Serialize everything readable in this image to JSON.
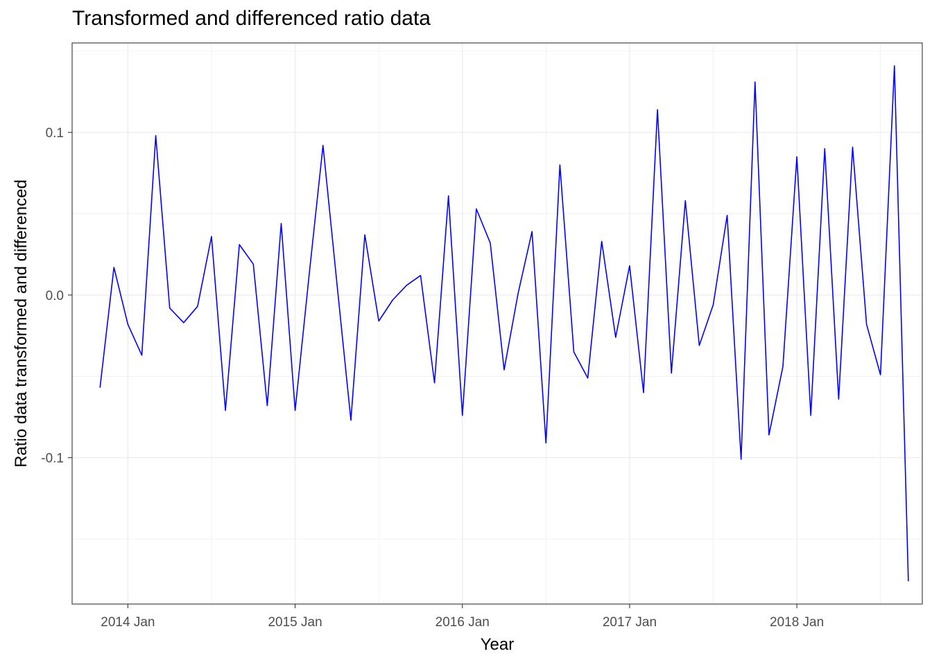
{
  "chart_data": {
    "type": "line",
    "title": "Transformed and differenced ratio data",
    "xlabel": "Year",
    "ylabel": "Ratio data transformed and differenced",
    "x_ticks": [
      "2014 Jan",
      "2015 Jan",
      "2016 Jan",
      "2017 Jan",
      "2018 Jan"
    ],
    "y_ticks": [
      "0.1",
      "0.0",
      "-0.1"
    ],
    "y_tick_values": [
      0.1,
      0.0,
      -0.1
    ],
    "ylim": [
      -0.19,
      0.155
    ],
    "xlim": [
      "2013-09-01",
      "2018-10-01"
    ],
    "grid": true,
    "line_color": "#0000ff",
    "series": [
      {
        "x": [
          "2013-11",
          "2013-12",
          "2014-01",
          "2014-02",
          "2014-03",
          "2014-04",
          "2014-05",
          "2014-06",
          "2014-07",
          "2014-08",
          "2014-09",
          "2014-10",
          "2014-11",
          "2014-12",
          "2015-01",
          "2015-02",
          "2015-03",
          "2015-04",
          "2015-05",
          "2015-06",
          "2015-07",
          "2015-08",
          "2015-09",
          "2015-10",
          "2015-11",
          "2015-12",
          "2016-01",
          "2016-02",
          "2016-03",
          "2016-04",
          "2016-05",
          "2016-06",
          "2016-07",
          "2016-08",
          "2016-09",
          "2016-10",
          "2016-11",
          "2016-12",
          "2017-01",
          "2017-02",
          "2017-03",
          "2017-04",
          "2017-05",
          "2017-06",
          "2017-07",
          "2017-08",
          "2017-09",
          "2017-10",
          "2017-11",
          "2017-12",
          "2018-01",
          "2018-02",
          "2018-03",
          "2018-04",
          "2018-05",
          "2018-06",
          "2018-07",
          "2018-08",
          "2018-09"
        ],
        "values": [
          -0.057,
          0.017,
          -0.018,
          -0.037,
          0.098,
          -0.008,
          -0.017,
          -0.007,
          0.036,
          -0.071,
          0.031,
          0.019,
          -0.068,
          0.044,
          -0.071,
          0.012,
          0.092,
          0.007,
          -0.077,
          0.037,
          -0.016,
          -0.003,
          0.006,
          0.012,
          -0.054,
          0.061,
          -0.074,
          0.053,
          0.032,
          -0.046,
          0.001,
          0.039,
          -0.091,
          0.08,
          -0.035,
          -0.051,
          0.033,
          -0.026,
          0.018,
          -0.06,
          0.114,
          -0.048,
          0.058,
          -0.031,
          -0.006,
          0.049,
          -0.101,
          0.131,
          -0.086,
          -0.044,
          0.085,
          -0.074,
          0.09,
          -0.064,
          0.091,
          -0.018,
          -0.049,
          0.141,
          -0.176
        ]
      }
    ]
  }
}
